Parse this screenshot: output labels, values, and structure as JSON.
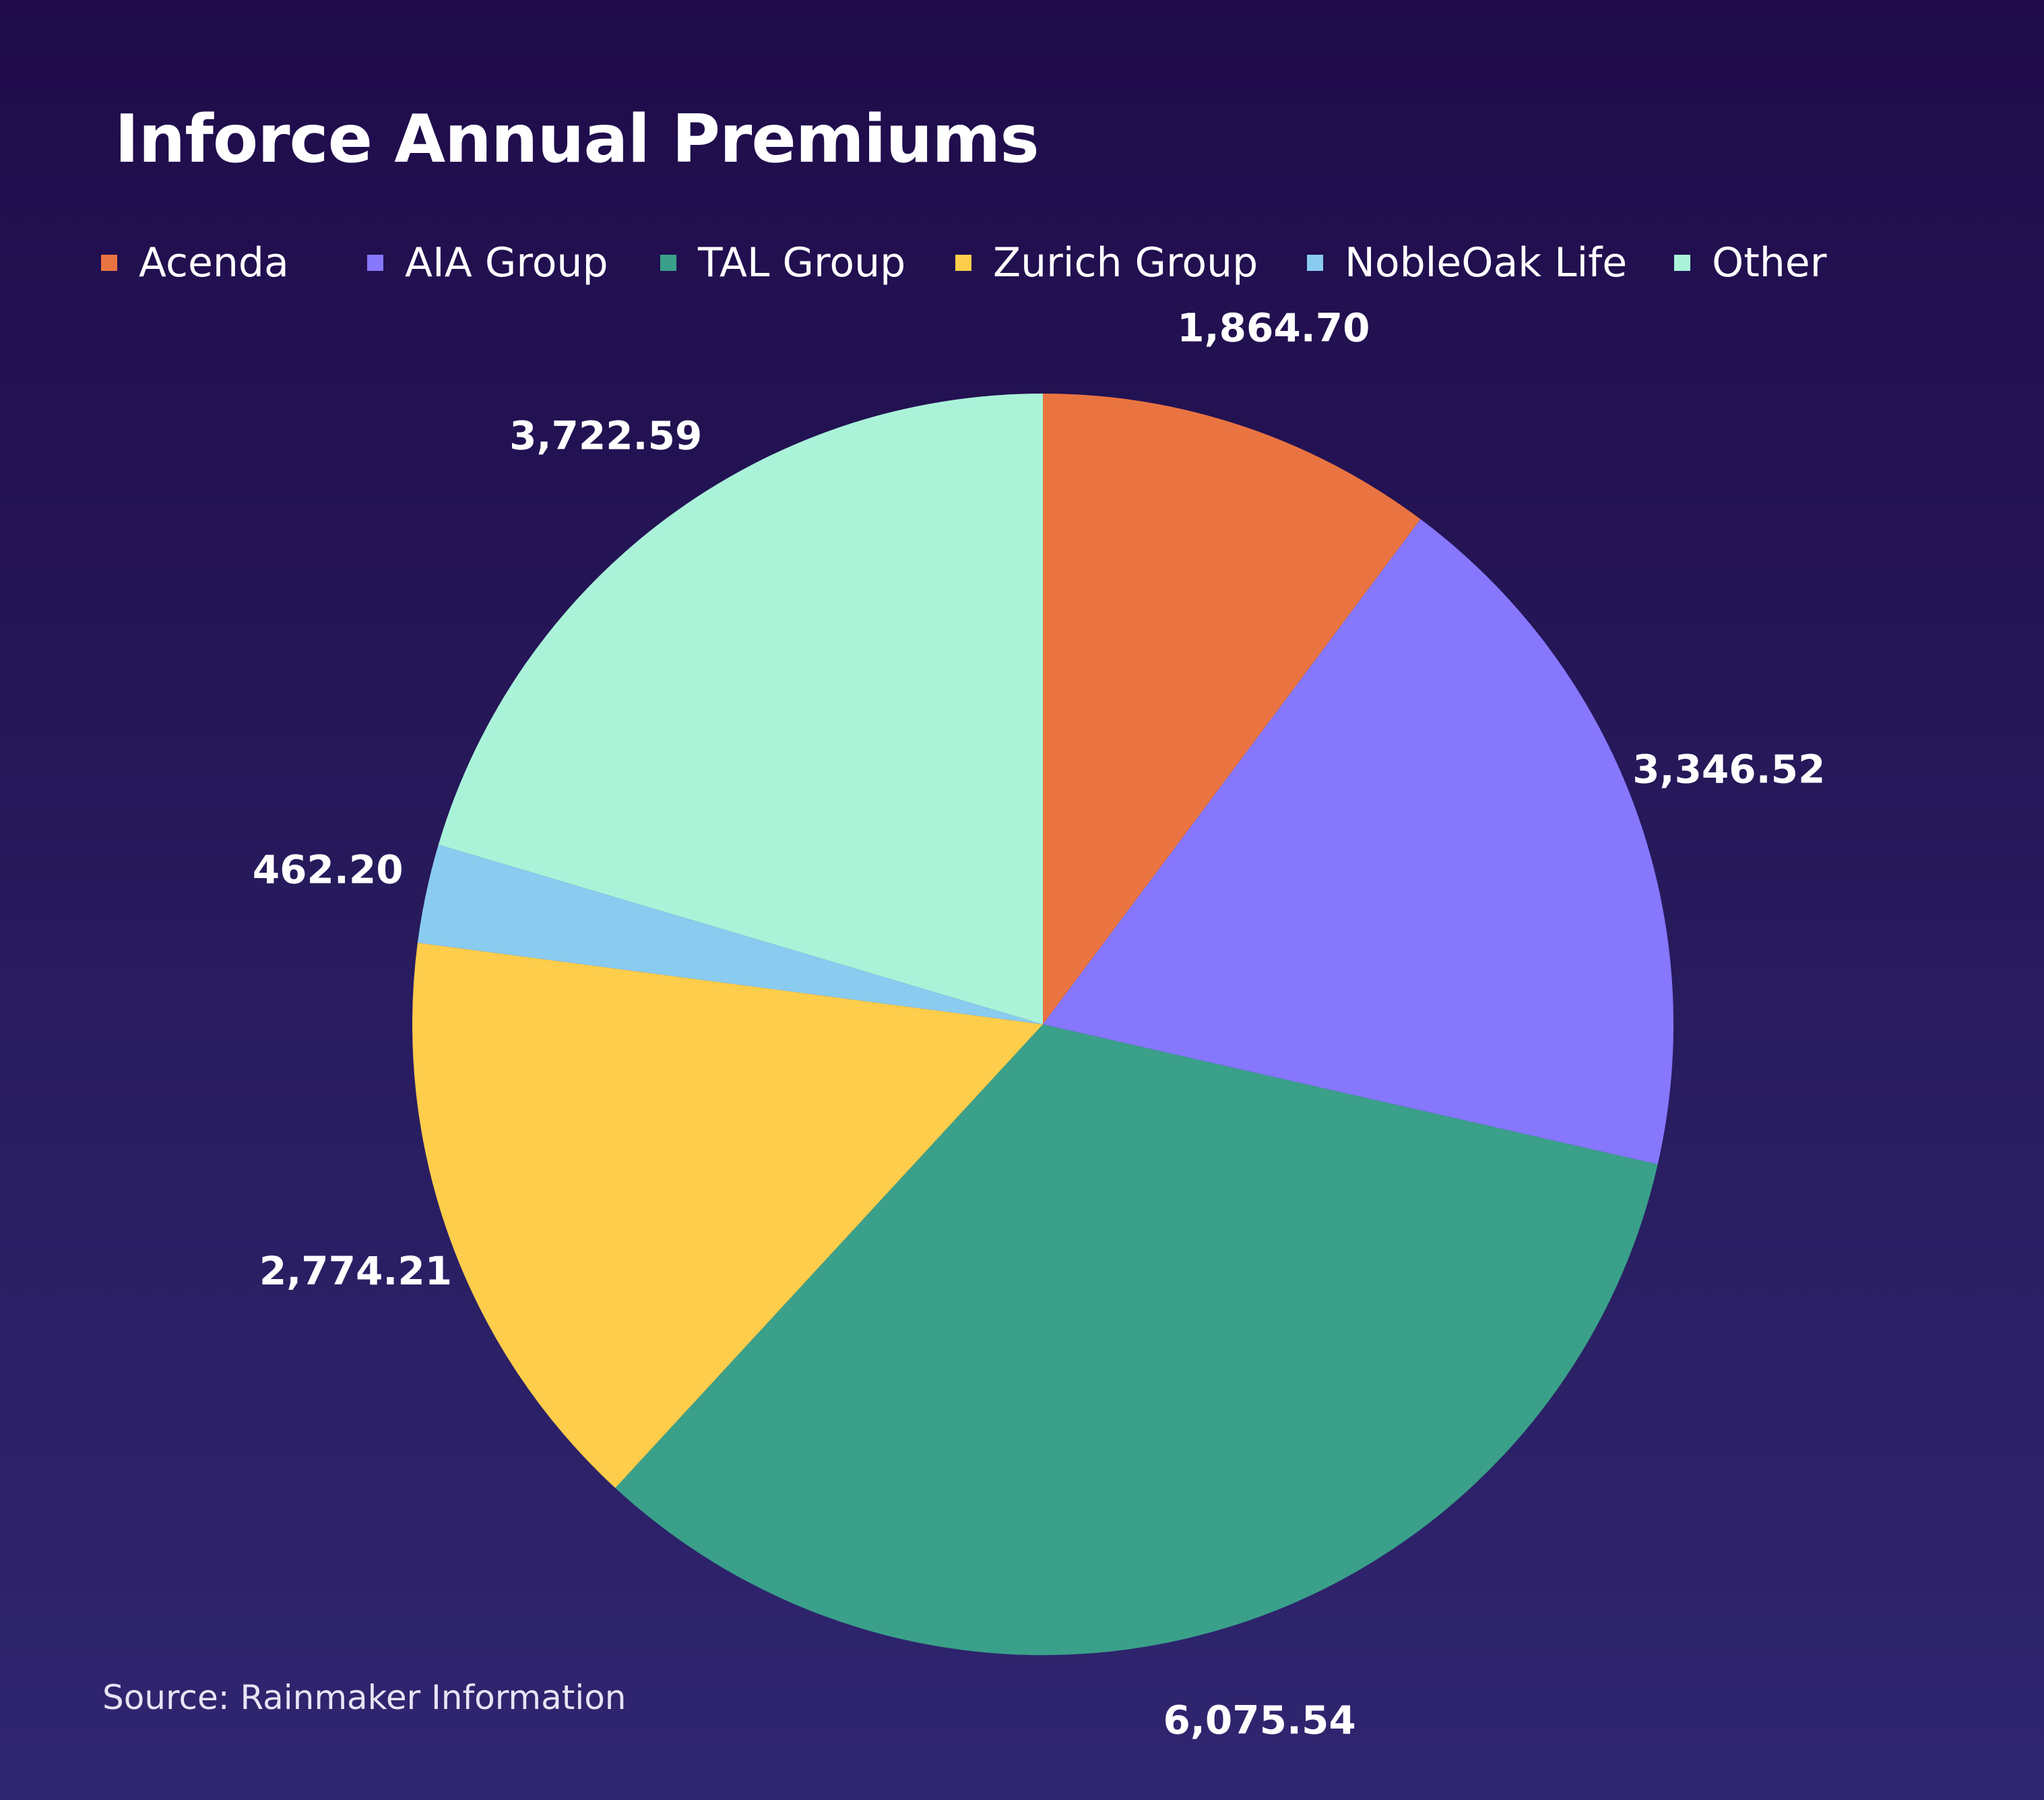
{
  "chart_data": {
    "type": "pie",
    "title": "Inforce Annual Premiums",
    "source": "Source: Rainmaker Information",
    "legend_position": "top",
    "start_angle": "12 o'clock",
    "direction": "clockwise",
    "series": [
      {
        "name": "Acenda",
        "value": 1864.7,
        "label": "1,864.70",
        "color": "#ea7441"
      },
      {
        "name": "AIA Group",
        "value": 3346.52,
        "label": "3,346.52",
        "color": "#8677fc"
      },
      {
        "name": "TAL Group",
        "value": 6075.54,
        "label": "6,075.54",
        "color": "#3aa08a"
      },
      {
        "name": "Zurich Group",
        "value": 2774.21,
        "label": "2,774.21",
        "color": "#fdcd4b"
      },
      {
        "name": "NobleOak Life",
        "value": 462.2,
        "label": "462.20",
        "color": "#8acbf0"
      },
      {
        "name": "Other",
        "value": 3722.59,
        "label": "3,722.59",
        "color": "#aaf3d9"
      }
    ]
  }
}
